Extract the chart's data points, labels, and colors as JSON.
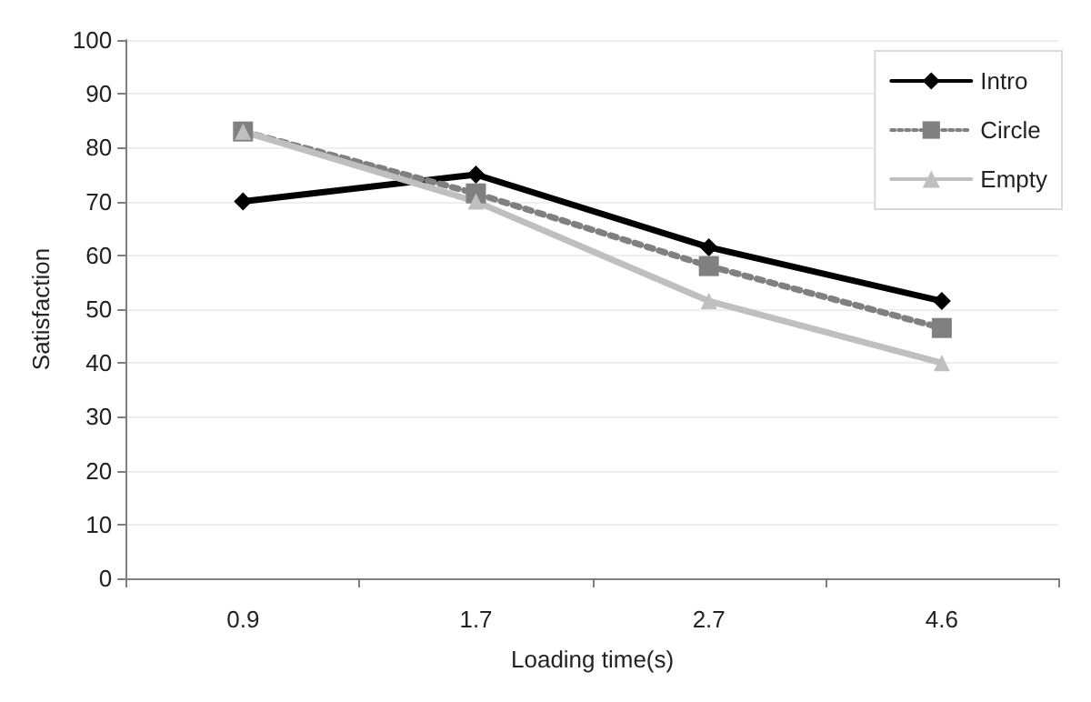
{
  "chart_data": {
    "type": "line",
    "xlabel": "Loading time(s)",
    "ylabel": "Satisfaction",
    "categories": [
      "0.9",
      "1.7",
      "2.7",
      "4.6"
    ],
    "series": [
      {
        "name": "Intro",
        "color": "#000000",
        "marker": "diamond",
        "line_style": "solid",
        "values": [
          70,
          75,
          61.5,
          51.5
        ]
      },
      {
        "name": "Circle",
        "color": "#808080",
        "marker": "square",
        "line_style": "dotted",
        "values": [
          83,
          71.5,
          58,
          46.5
        ]
      },
      {
        "name": "Empty",
        "color": "#bfbfbf",
        "marker": "triangle",
        "line_style": "solid",
        "values": [
          83,
          70,
          51.5,
          40
        ]
      }
    ],
    "ylim": [
      0,
      100
    ],
    "yticks": [
      0,
      10,
      20,
      30,
      40,
      50,
      60,
      70,
      80,
      90,
      100
    ],
    "grid": "y",
    "legend": "top right"
  }
}
